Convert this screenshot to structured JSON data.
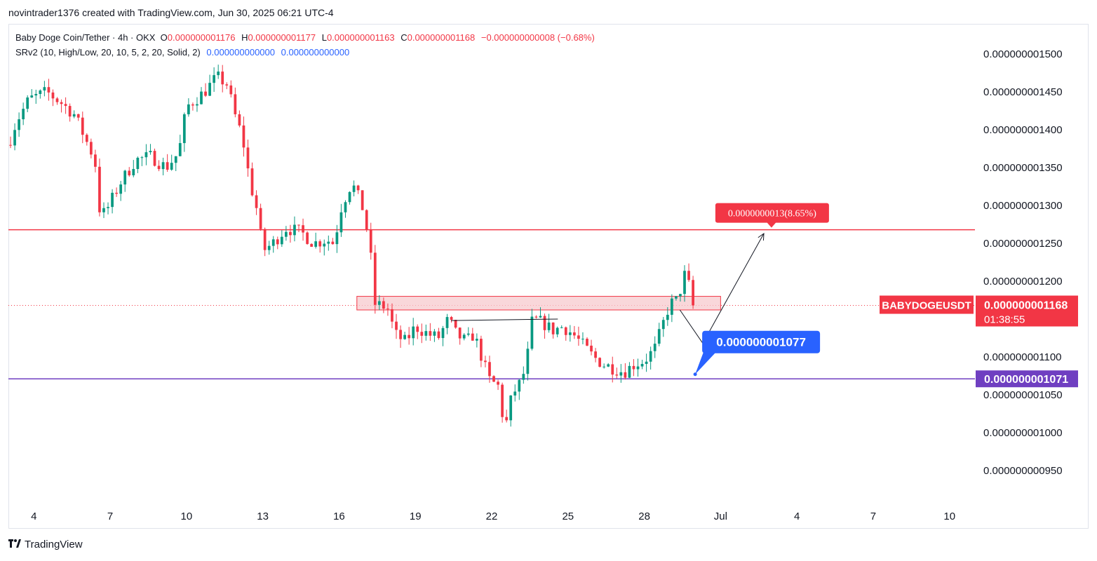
{
  "header": {
    "attribution": "novintrader1376 created with TradingView.com, Jun 30, 2025 06:21 UTC-4"
  },
  "legend": {
    "symbol": "Baby Doge Coin/Tether · 4h · OKX",
    "o_label": "O",
    "o_value": "0.000000001176",
    "h_label": "H",
    "h_value": "0.000000001177",
    "l_label": "L",
    "l_value": "0.000000001163",
    "c_label": "C",
    "c_value": "0.000000001168",
    "change": "−0.000000000008 (−0.68%)",
    "indicator": "SRv2 (10, High/Low, 20, 10, 5, 2, 20, Solid, 2)",
    "ind_v1": "0.000000000000",
    "ind_v2": "0.000000000000"
  },
  "footer": {
    "brand": "TradingView"
  },
  "colors": {
    "up": "#089981",
    "down": "#f23645",
    "resistance": "#f23645",
    "support": "#6f3fc1",
    "callout": "#2962ff",
    "zone": "#f7c9cd"
  },
  "chart_data": {
    "type": "candlestick",
    "symbol": "BABYDOGEUSDT",
    "interval": "4h",
    "ylim": [
      9.1e-10,
      1.54e-09
    ],
    "y_ticks": [
      "0.000000001500",
      "0.000000001450",
      "0.000000001400",
      "0.000000001350",
      "0.000000001300",
      "0.000000001250",
      "0.000000001200",
      "0.000000001100",
      "0.000000001050",
      "0.000000001000",
      "0.000000000950"
    ],
    "y_tick_values": [
      1.5e-09,
      1.45e-09,
      1.4e-09,
      1.35e-09,
      1.3e-09,
      1.25e-09,
      1.2e-09,
      1.1e-09,
      1.05e-09,
      1e-09,
      9.5e-10
    ],
    "x_ticks": [
      "4",
      "7",
      "10",
      "13",
      "16",
      "19",
      "22",
      "25",
      "28",
      "Jul",
      "4",
      "7",
      "10"
    ],
    "x_tick_days": [
      4,
      7,
      10,
      13,
      16,
      19,
      22,
      25,
      28,
      31,
      34,
      37,
      40
    ],
    "x_range_days": [
      3.0,
      41.0
    ],
    "price_anchors": [
      [
        3.0,
        1.38e-09
      ],
      [
        3.3,
        1.41e-09
      ],
      [
        3.8,
        1.44e-09
      ],
      [
        4.5,
        1.45e-09
      ],
      [
        5.1,
        1.435e-09
      ],
      [
        5.6,
        1.42e-09
      ],
      [
        6.0,
        1.39e-09
      ],
      [
        6.4,
        1.36e-09
      ],
      [
        6.6,
        1.29e-09
      ],
      [
        6.8,
        1.29e-09
      ],
      [
        7.4,
        1.33e-09
      ],
      [
        8.0,
        1.36e-09
      ],
      [
        8.6,
        1.365e-09
      ],
      [
        9.2,
        1.35e-09
      ],
      [
        9.7,
        1.37e-09
      ],
      [
        10.0,
        1.43e-09
      ],
      [
        10.7,
        1.45e-09
      ],
      [
        11.2,
        1.47e-09
      ],
      [
        11.6,
        1.46e-09
      ],
      [
        11.9,
        1.42e-09
      ],
      [
        12.2,
        1.39e-09
      ],
      [
        12.5,
        1.33e-09
      ],
      [
        12.8,
        1.29e-09
      ],
      [
        13.0,
        1.24e-09
      ],
      [
        13.4,
        1.25e-09
      ],
      [
        13.9,
        1.27e-09
      ],
      [
        14.5,
        1.265e-09
      ],
      [
        15.0,
        1.25e-09
      ],
      [
        15.5,
        1.255e-09
      ],
      [
        15.8,
        1.25e-09
      ],
      [
        16.1,
        1.3e-09
      ],
      [
        16.5,
        1.33e-09
      ],
      [
        16.9,
        1.3e-09
      ],
      [
        17.2,
        1.25e-09
      ],
      [
        17.4,
        1.17e-09
      ],
      [
        17.9,
        1.165e-09
      ],
      [
        18.2,
        1.13e-09
      ],
      [
        18.6,
        1.12e-09
      ],
      [
        19.0,
        1.14e-09
      ],
      [
        19.5,
        1.13e-09
      ],
      [
        19.9,
        1.125e-09
      ],
      [
        20.3,
        1.15e-09
      ],
      [
        20.6,
        1.13e-09
      ],
      [
        21.0,
        1.12e-09
      ],
      [
        21.3,
        1.13e-09
      ],
      [
        21.6,
        1.1e-09
      ],
      [
        21.9,
        1.07e-09
      ],
      [
        22.3,
        1.06e-09
      ],
      [
        22.5,
        1e-09
      ],
      [
        22.8,
        1.05e-09
      ],
      [
        23.2,
        1.07e-09
      ],
      [
        23.4,
        1.1e-09
      ],
      [
        23.6,
        1.15e-09
      ],
      [
        24.0,
        1.145e-09
      ],
      [
        24.4,
        1.135e-09
      ],
      [
        24.8,
        1.14e-09
      ],
      [
        25.2,
        1.13e-09
      ],
      [
        25.6,
        1.115e-09
      ],
      [
        26.0,
        1.1e-09
      ],
      [
        26.4,
        1.09e-09
      ],
      [
        26.8,
        1.085e-09
      ],
      [
        27.2,
        1.08e-09
      ],
      [
        27.6,
        1.09e-09
      ],
      [
        28.0,
        1.095e-09
      ],
      [
        28.4,
        1.11e-09
      ],
      [
        28.7,
        1.14e-09
      ],
      [
        29.0,
        1.17e-09
      ],
      [
        29.3,
        1.175e-09
      ],
      [
        29.6,
        1.21e-09
      ],
      [
        29.8,
        1.19e-09
      ],
      [
        30.0,
        1.168e-09
      ]
    ],
    "resistance_level": 1.268e-09,
    "support_level": 1.071e-09,
    "support_label": "0.000000001071",
    "current_price": 1.168e-09,
    "current_label": "0.000000001168",
    "countdown": "01:38:55",
    "symbol_tag": "BABYDOGEUSDT",
    "zone": {
      "y_top": 1.18e-09,
      "y_bottom": 1.162e-09,
      "x_start": 16.7,
      "x_end": 31.0
    },
    "neckline": {
      "x1": 20.4,
      "y1": 1.148e-09,
      "x2": 24.6,
      "y2": 1.15e-09
    },
    "projection": [
      [
        29.4,
        1.162e-09
      ],
      [
        30.3,
        1.118e-09
      ],
      [
        32.7,
        1.263e-09
      ]
    ],
    "target_label": "0.0000000013(8.65%)",
    "target_point": {
      "x": 33.0,
      "y": 1.268e-09
    },
    "entry_label": "0.000000001077",
    "entry_point": {
      "x": 30.0,
      "y": 1.077e-09
    }
  }
}
